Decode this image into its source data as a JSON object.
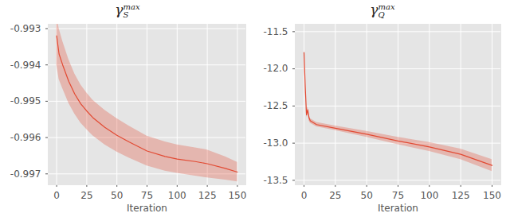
{
  "chart_data": [
    {
      "type": "line",
      "title": {
        "text": "γ",
        "subscript": "S",
        "superscript": "max"
      },
      "xlabel": "Iteration",
      "color": "#E24A33",
      "xlim": [
        -7,
        157
      ],
      "xticks": [
        0,
        25,
        50,
        75,
        100,
        125,
        150
      ],
      "ylim": [
        -0.9973,
        -0.99288
      ],
      "yticks": [
        -0.993,
        -0.994,
        -0.995,
        -0.996,
        -0.997
      ],
      "grid": true,
      "x": [
        0,
        2,
        5,
        10,
        15,
        20,
        25,
        30,
        40,
        50,
        60,
        75,
        90,
        100,
        115,
        125,
        140,
        150
      ],
      "values": [
        -0.9932,
        -0.9937,
        -0.994,
        -0.99445,
        -0.9948,
        -0.99507,
        -0.99527,
        -0.99545,
        -0.99572,
        -0.99594,
        -0.99612,
        -0.99637,
        -0.99652,
        -0.99659,
        -0.99666,
        -0.99672,
        -0.99685,
        -0.99695
      ],
      "lower": [
        -0.994,
        -0.9944,
        -0.99465,
        -0.99505,
        -0.99535,
        -0.9956,
        -0.99578,
        -0.99595,
        -0.9962,
        -0.9964,
        -0.99656,
        -0.99678,
        -0.99692,
        -0.99698,
        -0.99706,
        -0.99711,
        -0.99717,
        -0.99722
      ],
      "upper": [
        -0.99265,
        -0.993,
        -0.99335,
        -0.99385,
        -0.99425,
        -0.99455,
        -0.99477,
        -0.99497,
        -0.99525,
        -0.99548,
        -0.99568,
        -0.99596,
        -0.99612,
        -0.9962,
        -0.99628,
        -0.99634,
        -0.99653,
        -0.99668
      ]
    },
    {
      "type": "line",
      "title": {
        "text": "γ",
        "subscript": "Q",
        "superscript": "max"
      },
      "xlabel": "Iteration",
      "color": "#E24A33",
      "xlim": [
        -7,
        157
      ],
      "xticks": [
        0,
        25,
        50,
        75,
        100,
        125,
        150
      ],
      "ylim": [
        -13.56,
        -11.4
      ],
      "yticks": [
        -11.5,
        {
          "value": -12,
          "label": "-12.0"
        },
        -12.5,
        {
          "value": -13,
          "label": "-13.0"
        },
        -13.5
      ],
      "grid": true,
      "x": [
        0,
        1,
        2,
        3,
        4,
        5,
        10,
        25,
        50,
        75,
        100,
        125,
        150
      ],
      "values": [
        -11.78,
        -12.25,
        -12.62,
        -12.55,
        -12.66,
        -12.7,
        -12.75,
        -12.8,
        -12.88,
        -12.97,
        -13.05,
        -13.15,
        -13.3
      ],
      "lower": [
        -11.8,
        -12.3,
        -12.66,
        -12.59,
        -12.7,
        -12.73,
        -12.78,
        -12.83,
        -12.92,
        -13.02,
        -13.11,
        -13.22,
        -13.38
      ],
      "upper": [
        -11.76,
        -12.2,
        -12.58,
        -12.51,
        -12.62,
        -12.67,
        -12.72,
        -12.77,
        -12.84,
        -12.92,
        -12.99,
        -13.08,
        -13.22
      ]
    }
  ]
}
